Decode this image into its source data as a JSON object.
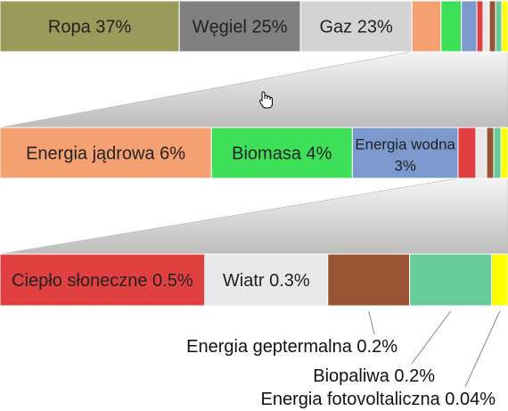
{
  "chart_data": {
    "type": "bar",
    "title": "",
    "rows": [
      {
        "name": "main",
        "segments": [
          {
            "label": "Ropa 37%",
            "value": 37,
            "color": "#9a9a5a"
          },
          {
            "label": "Węgiel 25%",
            "value": 25,
            "color": "#808080"
          },
          {
            "label": "Gaz 23%",
            "value": 23,
            "color": "#d3d3d3"
          },
          {
            "label": "",
            "value": 6,
            "color": "#f4a070"
          },
          {
            "label": "",
            "value": 4,
            "color": "#3ee05a"
          },
          {
            "label": "",
            "value": 3,
            "color": "#7b99cc"
          },
          {
            "label": "",
            "value": 0.5,
            "color": "#e04040"
          },
          {
            "label": "",
            "value": 0.3,
            "color": "#e8e8e8"
          },
          {
            "label": "",
            "value": 0.2,
            "color": "#995533"
          },
          {
            "label": "",
            "value": 0.2,
            "color": "#66cc99"
          },
          {
            "label": "",
            "value": 0.04,
            "color": "#ffff00"
          }
        ]
      },
      {
        "name": "zoom-1",
        "segments": [
          {
            "label": "Energia jądrowa 6%",
            "value": 6,
            "color": "#f4a070"
          },
          {
            "label": "Biomasa 4%",
            "value": 4,
            "color": "#3ee05a"
          },
          {
            "label": "Energia wodna 3%",
            "value": 3,
            "color": "#7b99cc"
          },
          {
            "label": "",
            "value": 0.5,
            "color": "#e04040"
          },
          {
            "label": "",
            "value": 0.3,
            "color": "#e8e8e8"
          },
          {
            "label": "",
            "value": 0.2,
            "color": "#995533"
          },
          {
            "label": "",
            "value": 0.2,
            "color": "#66cc99"
          },
          {
            "label": "",
            "value": 0.04,
            "color": "#ffff00"
          }
        ]
      },
      {
        "name": "zoom-2",
        "segments": [
          {
            "label": "Ciepło słoneczne 0.5%",
            "value": 0.5,
            "color": "#e04040"
          },
          {
            "label": "Wiatr 0.3%",
            "value": 0.3,
            "color": "#e8e8e8"
          },
          {
            "label": "",
            "value": 0.2,
            "color": "#995533"
          },
          {
            "label": "",
            "value": 0.2,
            "color": "#66cc99"
          },
          {
            "label": "",
            "value": 0.04,
            "color": "#ffff00"
          }
        ]
      }
    ],
    "callouts": [
      {
        "label": "Energia geptermalna 0.2%",
        "segment": 2
      },
      {
        "label": "Biopaliwa 0.2%",
        "segment": 3
      },
      {
        "label": "Energia fotovoltaliczna 0.04%",
        "segment": 4
      }
    ]
  }
}
